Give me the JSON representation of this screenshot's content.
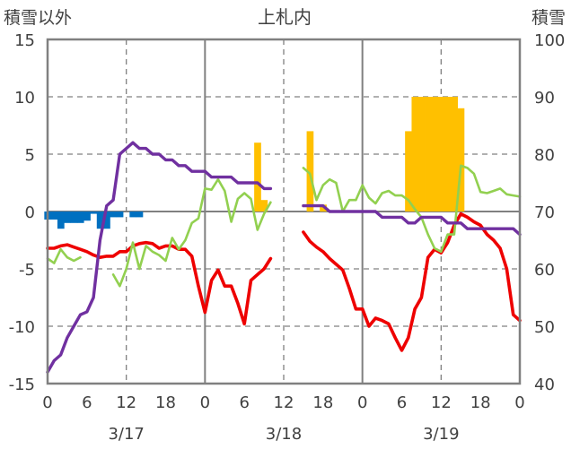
{
  "chart_data": {
    "type": "combo",
    "title": "上札内",
    "y_left_label": "積雪以外",
    "y_right_label": "積雪",
    "y_left_range": [
      -15,
      15
    ],
    "y_left_ticks": [
      15,
      10,
      5,
      0,
      -5,
      -10,
      -15
    ],
    "y_right_range": [
      40,
      100
    ],
    "y_right_ticks": [
      100,
      90,
      80,
      70,
      60,
      50,
      40
    ],
    "x_range_hours": [
      0,
      72
    ],
    "x_tick_hours": [
      0,
      6,
      12,
      18,
      24,
      30,
      36,
      42,
      48,
      54,
      60,
      66,
      72
    ],
    "x_tick_labels": [
      "0",
      "6",
      "12",
      "18",
      "0",
      "6",
      "12",
      "18",
      "0",
      "6",
      "12",
      "18",
      "0"
    ],
    "date_labels": [
      {
        "hour": 12,
        "label": "3/17"
      },
      {
        "hour": 36,
        "label": "3/18"
      },
      {
        "hour": 60,
        "label": "3/19"
      }
    ],
    "day_separators": [
      24,
      48
    ],
    "grid_hours": [
      12,
      36,
      60
    ],
    "colors": {
      "temperature": "#ee0000",
      "humidity": "#92d050",
      "snow_depth": "#7030a0",
      "precipitation": "#ffc000",
      "wind": "#0070c0",
      "axis": "#808080",
      "grid": "#808080"
    },
    "series": [
      {
        "name": "precipitation",
        "type": "bar",
        "axis": "left",
        "points": [
          [
            32,
            6
          ],
          [
            33,
            1
          ],
          [
            40,
            7
          ],
          [
            42,
            0.6
          ],
          [
            55,
            7
          ],
          [
            56,
            10
          ],
          [
            57,
            10
          ],
          [
            58,
            10
          ],
          [
            59,
            10
          ],
          [
            60,
            10
          ],
          [
            61,
            10
          ],
          [
            62,
            10
          ],
          [
            63,
            9
          ]
        ]
      },
      {
        "name": "wind",
        "type": "bar",
        "axis": "left",
        "points": [
          [
            0,
            -0.7
          ],
          [
            1,
            -0.7
          ],
          [
            2,
            -1.5
          ],
          [
            3,
            -1
          ],
          [
            4,
            -1
          ],
          [
            5,
            -1
          ],
          [
            6,
            -0.8
          ],
          [
            7,
            -0.2
          ],
          [
            8,
            -1.5
          ],
          [
            9,
            -1.5
          ],
          [
            10,
            -0.5
          ],
          [
            11,
            -0.5
          ],
          [
            13,
            -0.5
          ],
          [
            14,
            -0.5
          ]
        ]
      },
      {
        "name": "temperature",
        "type": "line",
        "axis": "left",
        "segments": [
          [
            [
              0,
              -3.2
            ],
            [
              1,
              -3.2
            ],
            [
              2,
              -3
            ],
            [
              3,
              -2.9
            ],
            [
              4,
              -3.1
            ],
            [
              5,
              -3.3
            ],
            [
              6,
              -3.5
            ],
            [
              7,
              -3.8
            ],
            [
              8,
              -4
            ],
            [
              9,
              -3.9
            ],
            [
              10,
              -3.9
            ],
            [
              11,
              -3.5
            ],
            [
              12,
              -3.5
            ],
            [
              13,
              -3
            ],
            [
              14,
              -2.8
            ],
            [
              15,
              -2.7
            ],
            [
              16,
              -2.8
            ],
            [
              17,
              -3.2
            ],
            [
              18,
              -3
            ],
            [
              19,
              -3
            ],
            [
              20,
              -3.3
            ],
            [
              21,
              -3.3
            ],
            [
              22,
              -3.9
            ],
            [
              23,
              -6.5
            ],
            [
              24,
              -8.8
            ],
            [
              25,
              -6
            ],
            [
              26,
              -5.1
            ],
            [
              27,
              -6.5
            ],
            [
              28,
              -6.5
            ],
            [
              29,
              -8
            ],
            [
              30,
              -9.8
            ],
            [
              31,
              -6
            ],
            [
              32,
              -5.5
            ],
            [
              33,
              -5
            ],
            [
              34,
              -4.1
            ]
          ],
          [
            [
              39,
              -1.8
            ],
            [
              40,
              -2.6
            ],
            [
              41,
              -3.1
            ],
            [
              42,
              -3.5
            ],
            [
              43,
              -4.1
            ],
            [
              44,
              -4.6
            ],
            [
              45,
              -5.1
            ],
            [
              46,
              -6.7
            ],
            [
              47,
              -8.5
            ],
            [
              48,
              -8.5
            ],
            [
              49,
              -10
            ],
            [
              50,
              -9.3
            ],
            [
              51,
              -9.5
            ],
            [
              52,
              -9.8
            ],
            [
              53,
              -11
            ],
            [
              54,
              -12.1
            ],
            [
              55,
              -11
            ],
            [
              56,
              -8.5
            ],
            [
              57,
              -7.5
            ],
            [
              58,
              -4
            ],
            [
              59,
              -3.3
            ],
            [
              60,
              -3.6
            ],
            [
              61,
              -2.7
            ],
            [
              62,
              -1.2
            ],
            [
              63,
              -0.2
            ],
            [
              64,
              -0.5
            ],
            [
              65,
              -0.9
            ],
            [
              66,
              -1.2
            ],
            [
              67,
              -2
            ],
            [
              68,
              -2.5
            ],
            [
              69,
              -3.2
            ],
            [
              70,
              -5
            ],
            [
              71,
              -9
            ],
            [
              72,
              -9.5
            ]
          ]
        ]
      },
      {
        "name": "humidity",
        "type": "line",
        "axis": "left",
        "segments": [
          [
            [
              0,
              -4.1
            ],
            [
              1,
              -4.5
            ],
            [
              2,
              -3.3
            ],
            [
              3,
              -4
            ],
            [
              4,
              -4.3
            ],
            [
              5,
              -4
            ]
          ],
          [
            [
              10,
              -5.5
            ],
            [
              11,
              -6.5
            ],
            [
              12,
              -5
            ],
            [
              13,
              -2.7
            ],
            [
              14,
              -5
            ],
            [
              15,
              -3
            ],
            [
              16,
              -3.5
            ],
            [
              17,
              -3.8
            ],
            [
              18,
              -4.3
            ],
            [
              19,
              -2.3
            ],
            [
              20,
              -3.3
            ],
            [
              21,
              -2.5
            ],
            [
              22,
              -1
            ],
            [
              23,
              -0.6
            ],
            [
              24,
              2
            ],
            [
              25,
              1.9
            ],
            [
              26,
              2.8
            ],
            [
              27,
              1.8
            ],
            [
              28,
              -0.9
            ],
            [
              29,
              1.1
            ],
            [
              30,
              1.6
            ],
            [
              31,
              1.1
            ],
            [
              32,
              -1.6
            ],
            [
              33,
              -0.2
            ],
            [
              34,
              0.8
            ]
          ],
          [
            [
              39,
              3.8
            ],
            [
              40,
              3.3
            ],
            [
              41,
              1
            ],
            [
              42,
              2.3
            ],
            [
              43,
              2.8
            ],
            [
              44,
              2.5
            ],
            [
              45,
              0
            ],
            [
              46,
              1
            ],
            [
              47,
              1
            ],
            [
              48,
              2.3
            ],
            [
              49,
              1.2
            ],
            [
              50,
              0.7
            ],
            [
              51,
              1.6
            ],
            [
              52,
              1.8
            ],
            [
              53,
              1.4
            ],
            [
              54,
              1.4
            ],
            [
              55,
              1
            ],
            [
              56,
              0.2
            ],
            [
              57,
              -0.5
            ],
            [
              58,
              -2
            ],
            [
              59,
              -3.2
            ],
            [
              60,
              -3.5
            ],
            [
              61,
              -2
            ],
            [
              62,
              -2
            ],
            [
              63,
              4
            ],
            [
              64,
              3.8
            ],
            [
              65,
              3.3
            ],
            [
              66,
              1.7
            ],
            [
              67,
              1.6
            ],
            [
              68,
              1.8
            ],
            [
              69,
              2
            ],
            [
              70,
              1.5
            ],
            [
              71,
              1.4
            ],
            [
              72,
              1.3
            ]
          ]
        ]
      },
      {
        "name": "snow_depth",
        "type": "line",
        "axis": "right",
        "segments": [
          [
            [
              0,
              42
            ],
            [
              1,
              44
            ],
            [
              2,
              45
            ],
            [
              3,
              48
            ],
            [
              4,
              50
            ],
            [
              5,
              52
            ],
            [
              6,
              52.5
            ],
            [
              7,
              55
            ],
            [
              8,
              65
            ],
            [
              9,
              71
            ],
            [
              10,
              72
            ],
            [
              11,
              80
            ],
            [
              12,
              81
            ],
            [
              13,
              82
            ],
            [
              14,
              81
            ],
            [
              15,
              81
            ],
            [
              16,
              80
            ],
            [
              17,
              80
            ],
            [
              18,
              79
            ],
            [
              19,
              79
            ],
            [
              20,
              78
            ],
            [
              21,
              78
            ],
            [
              22,
              77
            ],
            [
              23,
              77
            ],
            [
              24,
              77
            ],
            [
              25,
              76
            ],
            [
              26,
              76
            ],
            [
              27,
              76
            ],
            [
              28,
              76
            ],
            [
              29,
              75
            ],
            [
              30,
              75
            ],
            [
              31,
              75
            ],
            [
              32,
              75
            ],
            [
              33,
              74
            ],
            [
              34,
              74
            ]
          ],
          [
            [
              39,
              71
            ],
            [
              40,
              71
            ],
            [
              41,
              71
            ],
            [
              42,
              71
            ],
            [
              43,
              70
            ],
            [
              44,
              70
            ],
            [
              45,
              70
            ],
            [
              46,
              70
            ],
            [
              47,
              70
            ],
            [
              48,
              70
            ],
            [
              49,
              70
            ],
            [
              50,
              70
            ],
            [
              51,
              69
            ],
            [
              52,
              69
            ],
            [
              53,
              69
            ],
            [
              54,
              69
            ],
            [
              55,
              68
            ],
            [
              56,
              68
            ],
            [
              57,
              69
            ],
            [
              58,
              69
            ],
            [
              59,
              69
            ],
            [
              60,
              69
            ],
            [
              61,
              68
            ],
            [
              62,
              68
            ],
            [
              63,
              68
            ],
            [
              64,
              67
            ],
            [
              65,
              67
            ],
            [
              66,
              67
            ],
            [
              67,
              67
            ],
            [
              68,
              67
            ],
            [
              69,
              67
            ],
            [
              70,
              67
            ],
            [
              71,
              67
            ],
            [
              72,
              66
            ]
          ]
        ]
      }
    ]
  }
}
